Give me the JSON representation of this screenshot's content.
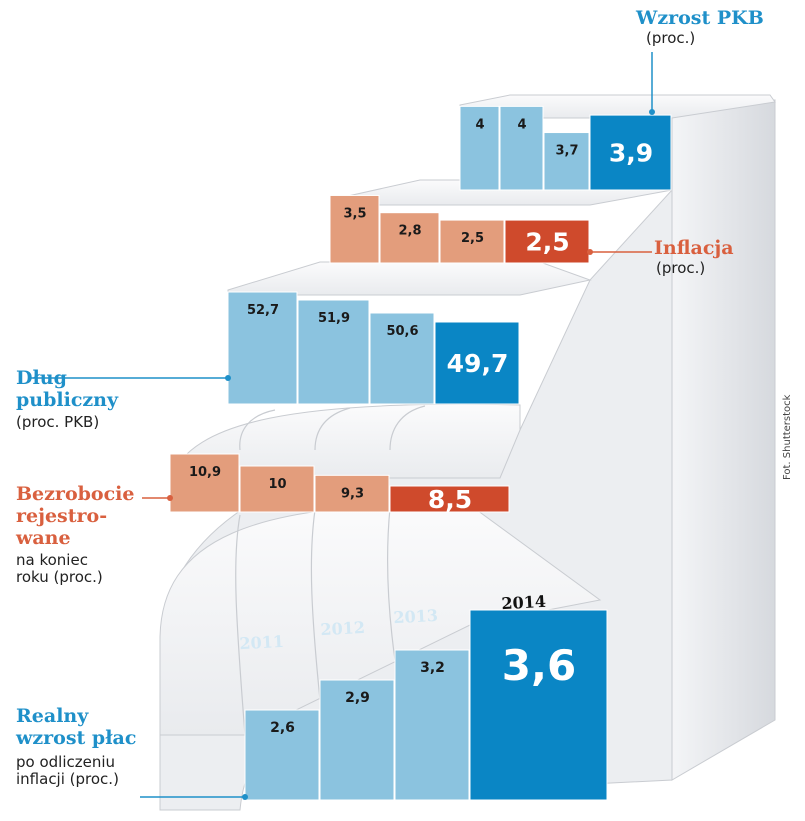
{
  "chart_data": {
    "type": "bar",
    "title": "",
    "years": [
      "2011",
      "2012",
      "2013",
      "2014"
    ],
    "series": [
      {
        "key": "pkb",
        "name": "Wzrost PKB",
        "unit": "(proc.)",
        "values": [
          4,
          4,
          3.7,
          3.9
        ],
        "labels": [
          "4",
          "4",
          "3,7",
          "3,9"
        ],
        "color": "#8bc3df",
        "highlight_color": "#0a86c5"
      },
      {
        "key": "inflacja",
        "name": "Inflacja",
        "unit": "(proc.)",
        "values": [
          3.5,
          2.8,
          2.5,
          2.5
        ],
        "labels": [
          "3,5",
          "2,8",
          "2,5",
          "2,5"
        ],
        "color": "#e39d7c",
        "highlight_color": "#cf4a2c"
      },
      {
        "key": "dlug",
        "name": "Dług publiczny",
        "unit": "(proc. PKB)",
        "values": [
          52.7,
          51.9,
          50.6,
          49.7
        ],
        "labels": [
          "52,7",
          "51,9",
          "50,6",
          "49,7"
        ],
        "color": "#8bc3df",
        "highlight_color": "#0a86c5"
      },
      {
        "key": "bezrobocie",
        "name": "Bezrobocie rejestrowane",
        "unit": "na koniec roku (proc.)",
        "values": [
          10.9,
          10,
          9.3,
          8.5
        ],
        "labels": [
          "10,9",
          "10",
          "9,3",
          "8,5"
        ],
        "color": "#e39d7c",
        "highlight_color": "#cf4a2c"
      },
      {
        "key": "place",
        "name": "Realny wzrost płac",
        "unit": "po odliczeniu inflacji (proc.)",
        "values": [
          2.6,
          2.9,
          3.2,
          3.6
        ],
        "labels": [
          "2,6",
          "2,9",
          "3,2",
          "3,6"
        ],
        "color": "#8bc3df",
        "highlight_color": "#0a86c5"
      }
    ]
  },
  "labels": {
    "pkb_title": "Wzrost PKB",
    "pkb_sub": "(proc.)",
    "inflacja_title": "Inflacja",
    "inflacja_sub": "(proc.)",
    "dlug_title_1": "Dług",
    "dlug_title_2": "publiczny",
    "dlug_sub": "(proc. PKB)",
    "bezrobocie_title_1": "Bezrobocie",
    "bezrobocie_title_2": "rejestro-",
    "bezrobocie_title_3": "wane",
    "bezrobocie_sub_1": "na koniec",
    "bezrobocie_sub_2": "roku (proc.)",
    "place_title_1": "Realny",
    "place_title_2": "wzrost płac",
    "place_sub_1": "po odliczeniu",
    "place_sub_2": "inflacji (proc.)"
  },
  "credit": "Fot. Shutterstock"
}
